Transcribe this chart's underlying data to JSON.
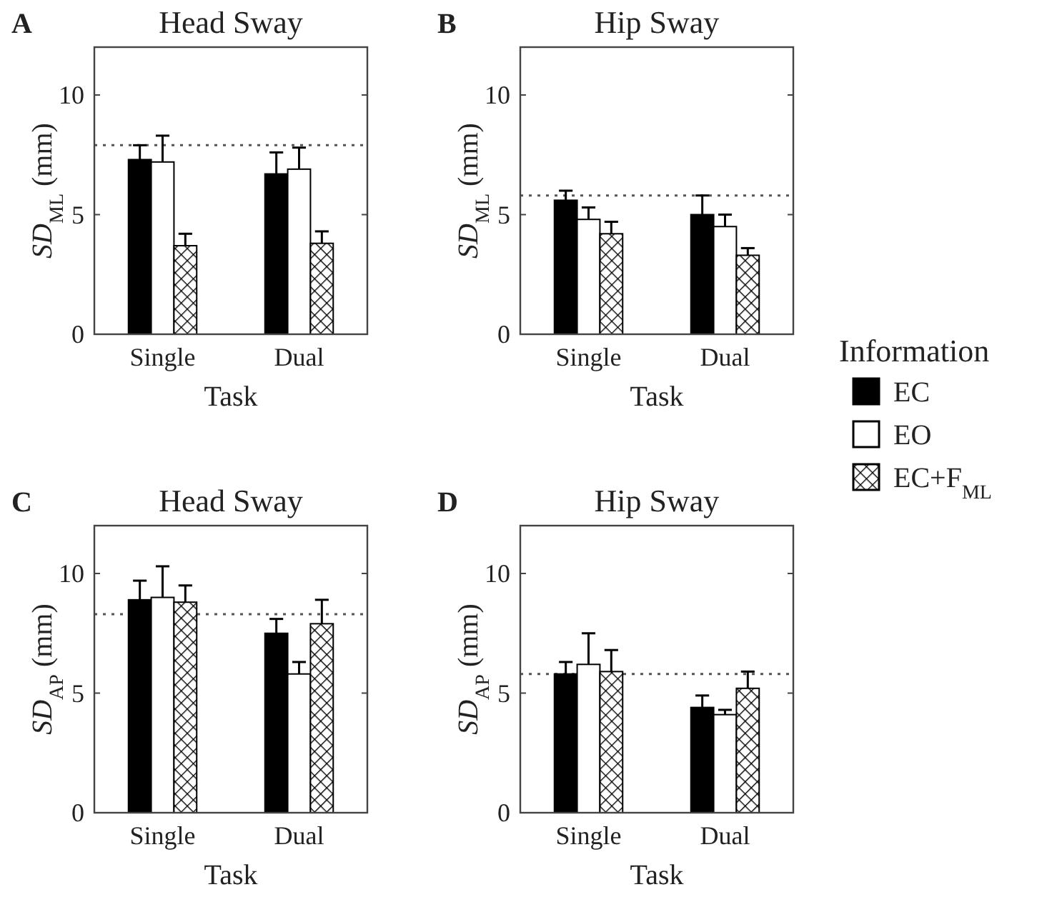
{
  "chart_data": [
    {
      "type": "bar",
      "title": "Head Sway",
      "xlabel": "Task",
      "ylabel": "SD$_{ML}$ (mm)",
      "annotations": [
        "A"
      ],
      "categories": [
        "Single",
        "Dual"
      ],
      "ylim": [
        0,
        12
      ],
      "yticks": [
        0,
        5,
        10
      ],
      "grid": false,
      "series": [
        {
          "color": "#000000",
          "values": [
            7.3,
            6.7
          ],
          "errors": [
            [
              7.3,
              7.9
            ],
            [
              6.7,
              7.6
            ]
          ]
        },
        {
          "color": "#ffffff",
          "values": [
            7.2,
            6.9
          ],
          "errors": [
            [
              7.2,
              8.3
            ],
            [
              6.9,
              7.8
            ]
          ]
        },
        {
          "color": "#000000",
          "values": [
            3.7,
            3.8
          ],
          "errors": [
            [
              3.7,
              4.2
            ],
            [
              3.8,
              4.3
            ]
          ]
        }
      ],
      "ref_lines": [
        {
          "axis": "y",
          "value": 7.9,
          "color": "#555555",
          "line_style": "dotted"
        }
      ]
    },
    {
      "type": "bar",
      "title": "Hip Sway",
      "xlabel": "Task",
      "ylabel": "SD$_{ML}$ (mm)",
      "annotations": [
        "B"
      ],
      "categories": [
        "Single",
        "Dual"
      ],
      "ylim": [
        0,
        12
      ],
      "yticks": [
        0,
        5,
        10
      ],
      "grid": false,
      "legend": "right",
      "legend_title": "Information",
      "series": [
        {
          "name": "EC",
          "color": "#000000",
          "values": [
            5.6,
            5.0
          ],
          "errors": [
            [
              5.6,
              6.0
            ],
            [
              5.0,
              5.8
            ]
          ]
        },
        {
          "name": "EO",
          "color": "#ffffff",
          "values": [
            4.8,
            4.5
          ],
          "errors": [
            [
              4.8,
              5.3
            ],
            [
              4.5,
              5.0
            ]
          ]
        },
        {
          "name": "EC+F$_{ML}$",
          "color": "#000000",
          "values": [
            4.2,
            3.3
          ],
          "errors": [
            [
              4.2,
              4.7
            ],
            [
              3.3,
              3.6
            ]
          ]
        }
      ],
      "ref_lines": [
        {
          "axis": "y",
          "value": 5.8,
          "color": "#555555",
          "line_style": "dotted"
        }
      ]
    },
    {
      "type": "bar",
      "title": "Head Sway",
      "xlabel": "Task",
      "ylabel": "SD$_{AP}$ (mm)",
      "annotations": [
        "C"
      ],
      "categories": [
        "Single",
        "Dual"
      ],
      "ylim": [
        0,
        12
      ],
      "yticks": [
        0,
        5,
        10
      ],
      "grid": false,
      "series": [
        {
          "color": "#000000",
          "values": [
            8.9,
            7.5
          ],
          "errors": [
            [
              8.9,
              9.7
            ],
            [
              7.5,
              8.1
            ]
          ]
        },
        {
          "color": "#ffffff",
          "values": [
            9.0,
            5.8
          ],
          "errors": [
            [
              9.0,
              10.3
            ],
            [
              5.8,
              6.3
            ]
          ]
        },
        {
          "color": "#000000",
          "values": [
            8.8,
            7.9
          ],
          "errors": [
            [
              8.8,
              9.5
            ],
            [
              7.9,
              8.9
            ]
          ]
        }
      ],
      "ref_lines": [
        {
          "axis": "y",
          "value": 8.3,
          "color": "#555555",
          "line_style": "dotted"
        }
      ]
    },
    {
      "type": "bar",
      "title": "Hip Sway",
      "xlabel": "Task",
      "ylabel": "SD$_{AP}$ (mm)",
      "annotations": [
        "D"
      ],
      "categories": [
        "Single",
        "Dual"
      ],
      "ylim": [
        0,
        12
      ],
      "yticks": [
        0,
        5,
        10
      ],
      "grid": false,
      "series": [
        {
          "color": "#000000",
          "values": [
            5.8,
            4.4
          ],
          "errors": [
            [
              5.8,
              6.3
            ],
            [
              4.4,
              4.9
            ]
          ]
        },
        {
          "color": "#ffffff",
          "values": [
            6.2,
            4.1
          ],
          "errors": [
            [
              6.2,
              7.5
            ],
            [
              4.1,
              4.3
            ]
          ]
        },
        {
          "color": "#000000",
          "values": [
            5.9,
            5.2
          ],
          "errors": [
            [
              5.9,
              6.8
            ],
            [
              5.2,
              5.9
            ]
          ]
        }
      ],
      "ref_lines": [
        {
          "axis": "y",
          "value": 5.8,
          "color": "#555555",
          "line_style": "dotted"
        }
      ]
    }
  ]
}
